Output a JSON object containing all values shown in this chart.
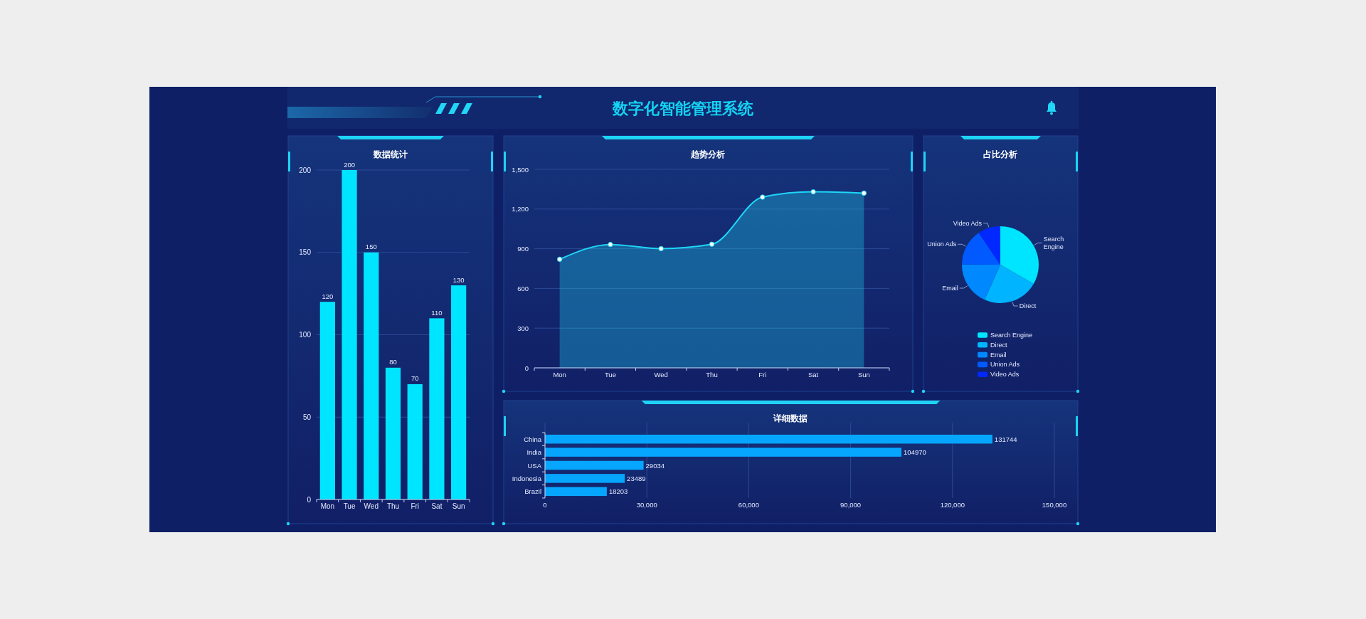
{
  "chart_data": [
    {
      "type": "other",
      "title": "数字化智能管理系统"
    },
    {
      "type": "bar",
      "title": "数据统计",
      "categories": [
        "Mon",
        "Tue",
        "Wed",
        "Thu",
        "Fri",
        "Sat",
        "Sun"
      ],
      "values": [
        120,
        200,
        150,
        80,
        70,
        110,
        130
      ],
      "color": "#00e5ff",
      "ylim": [
        0,
        200
      ],
      "yticks": [
        0,
        50,
        100,
        150,
        200
      ],
      "grid": "y",
      "data_labels": true
    },
    {
      "type": "area",
      "title": "趋势分析",
      "categories": [
        "Mon",
        "Tue",
        "Wed",
        "Thu",
        "Fri",
        "Sat",
        "Sun"
      ],
      "values": [
        820,
        932,
        901,
        934,
        1290,
        1330,
        1320
      ],
      "color": "#1ed6f7",
      "ylim": [
        0,
        1500
      ],
      "yticks": [
        0,
        300,
        600,
        900,
        {
          "value": 1200,
          "label": "1,200"
        },
        {
          "value": 1500,
          "label": "1,500"
        }
      ],
      "grid": "y",
      "marker": "circle"
    },
    {
      "type": "pie",
      "title": "占比分析",
      "categories": [
        "Search Engine",
        "Direct",
        "Email",
        "Union Ads",
        "Video Ads"
      ],
      "values": [
        33.3,
        23.4,
        18.4,
        15.4,
        9.5
      ],
      "colors": [
        "#00e5ff",
        "#00b4ff",
        "#0088ff",
        "#005aff",
        "#0028ff"
      ],
      "legend": "bottom"
    },
    {
      "type": "bar",
      "orientation": "horizontal",
      "title": "详细数据",
      "categories": [
        "China",
        "India",
        "USA",
        "Indonesia",
        "Brazil"
      ],
      "values": [
        131744,
        104970,
        29034,
        23489,
        18203
      ],
      "color": "#06a6ff",
      "xlim": [
        0,
        150000
      ],
      "xticks": [
        0,
        {
          "value": 30000,
          "label": "30,000"
        },
        {
          "value": 60000,
          "label": "60,000"
        },
        {
          "value": 90000,
          "label": "90,000"
        },
        {
          "value": 120000,
          "label": "120,000"
        },
        {
          "value": 150000,
          "label": "150,000"
        }
      ],
      "grid": "x",
      "data_labels": true
    }
  ]
}
